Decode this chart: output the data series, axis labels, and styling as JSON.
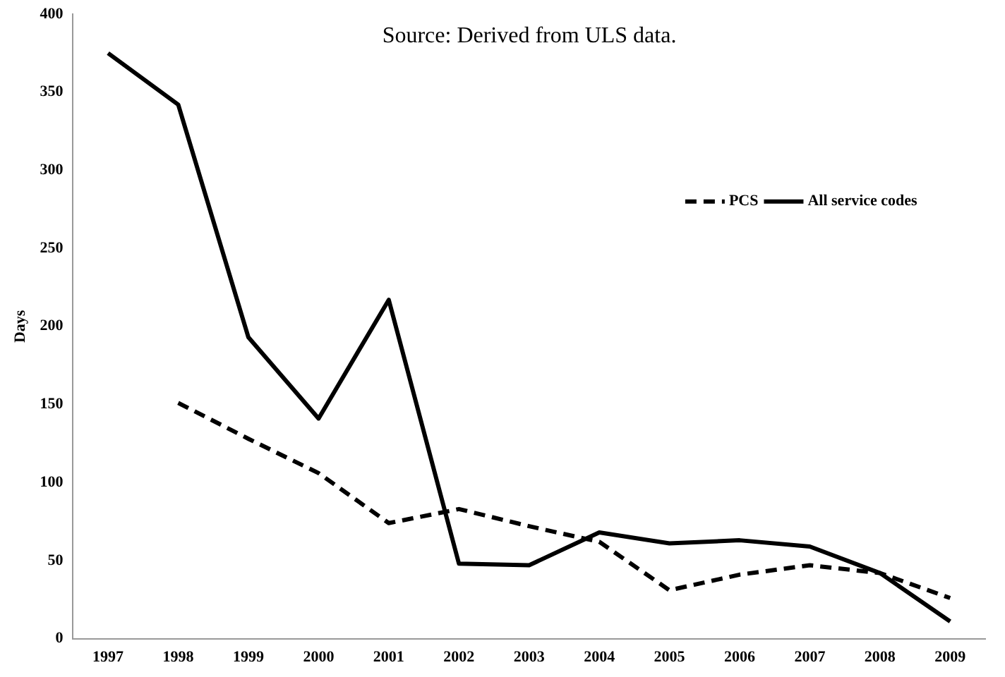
{
  "chart_data": {
    "type": "line",
    "ylabel": "Days",
    "annotations": [
      "Source: Derived from ULS data."
    ],
    "categories": [
      "1997",
      "1998",
      "1999",
      "2000",
      "2001",
      "2002",
      "2003",
      "2004",
      "2005",
      "2006",
      "2007",
      "2008",
      "2009"
    ],
    "series": [
      {
        "name": "PCS",
        "color": "#000000",
        "line_style": "dashed",
        "values": [
          null,
          151,
          128,
          106,
          74,
          83,
          72,
          62,
          31,
          41,
          47,
          42,
          26
        ]
      },
      {
        "name": "All service codes",
        "color": "#000000",
        "line_style": "solid",
        "values": [
          375,
          342,
          193,
          141,
          217,
          48,
          47,
          68,
          61,
          63,
          59,
          42,
          11
        ]
      }
    ],
    "ylim": [
      0,
      400
    ],
    "yticks": [
      0,
      50,
      100,
      150,
      200,
      250,
      300,
      350,
      400
    ],
    "grid": false,
    "legend": "top right",
    "marker": "none"
  }
}
